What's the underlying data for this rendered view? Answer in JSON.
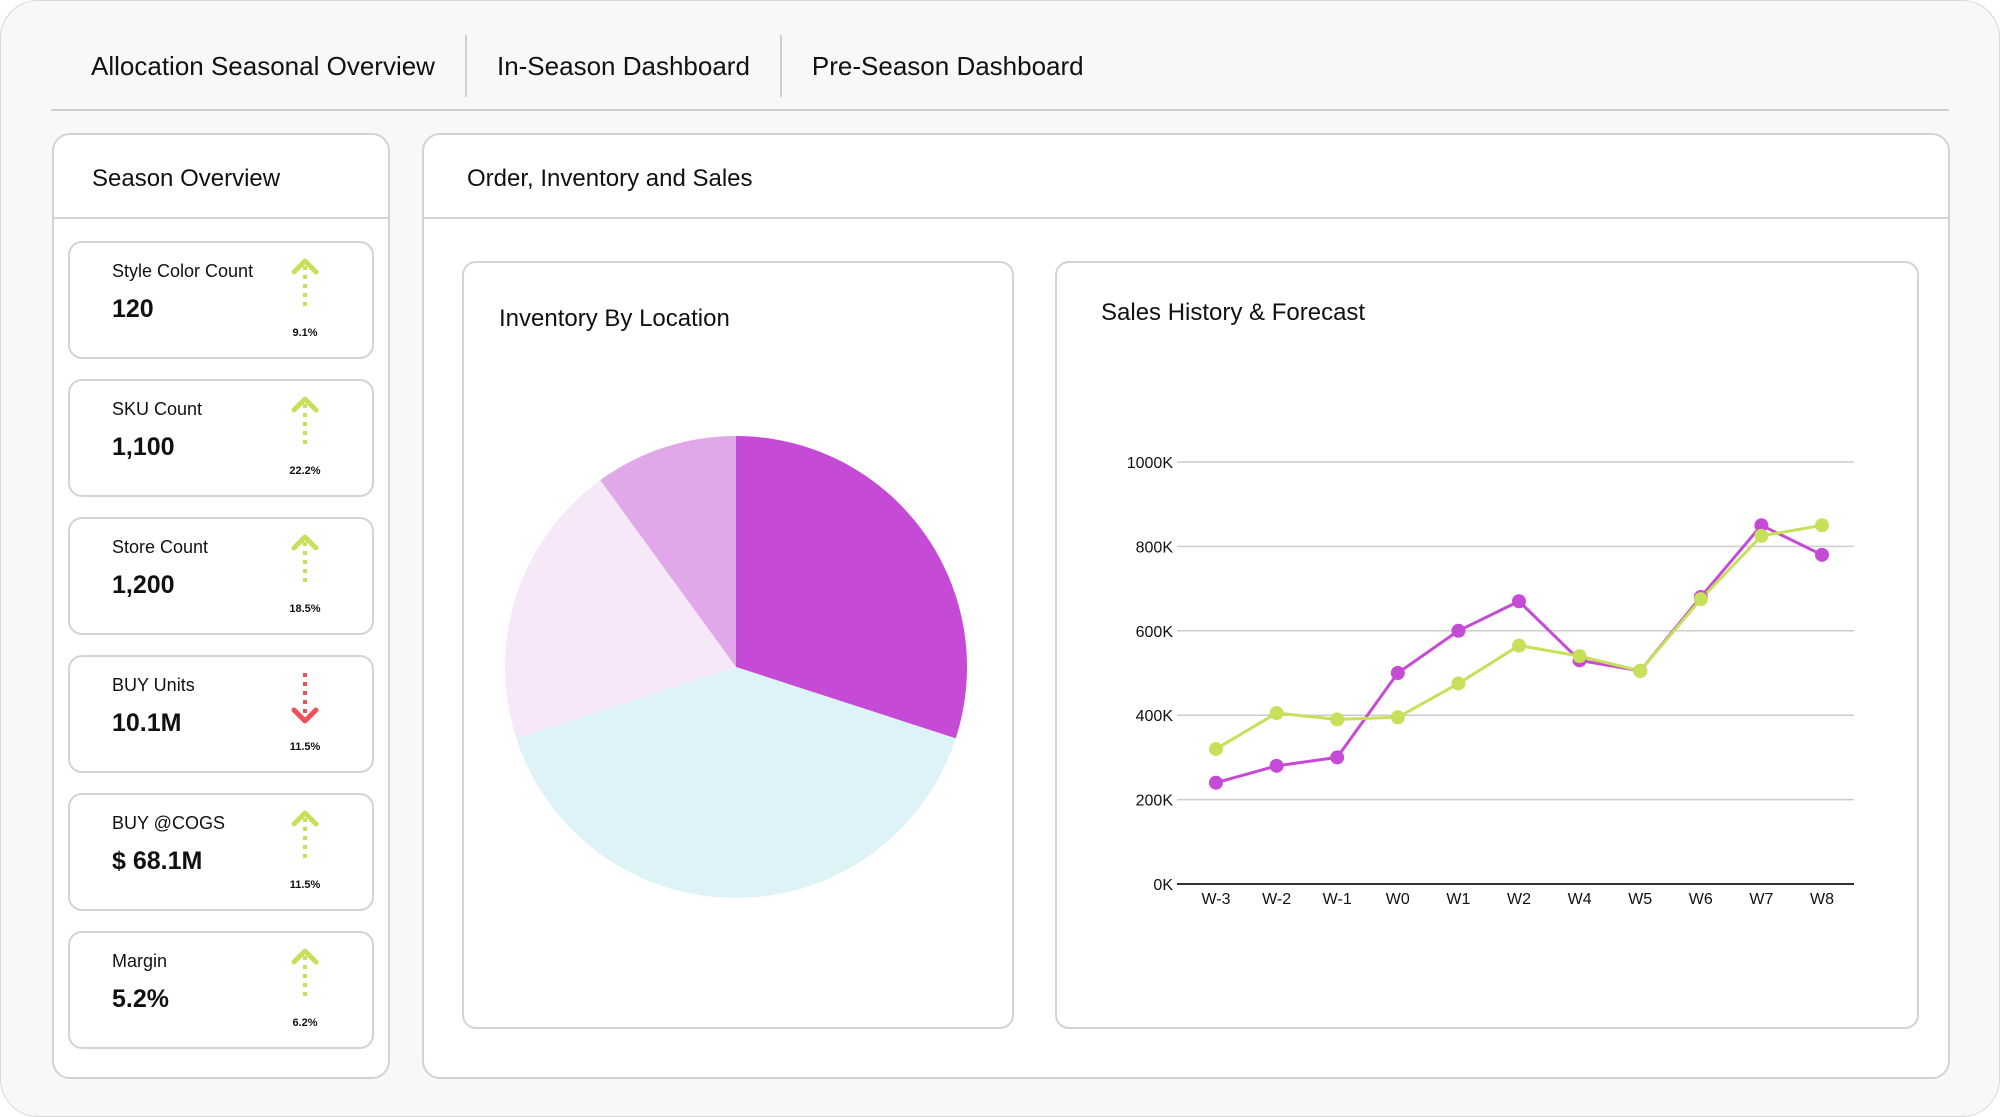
{
  "tabs": [
    "Allocation Seasonal Overview",
    "In-Season Dashboard",
    "Pre-Season Dashboard"
  ],
  "season_overview": {
    "title": "Season Overview",
    "kpis": [
      {
        "label": "Style Color Count",
        "value": "120",
        "change": "9.1%",
        "direction": "up"
      },
      {
        "label": "SKU Count",
        "value": "1,100",
        "change": "22.2%",
        "direction": "up"
      },
      {
        "label": "Store Count",
        "value": "1,200",
        "change": "18.5%",
        "direction": "up"
      },
      {
        "label": "BUY Units",
        "value": "10.1M",
        "change": "11.5%",
        "direction": "down"
      },
      {
        "label": "BUY @COGS",
        "value": "$ 68.1M",
        "change": "11.5%",
        "direction": "up"
      },
      {
        "label": "Margin",
        "value": "5.2%",
        "change": "6.2%",
        "direction": "up"
      }
    ],
    "colors": {
      "up": "#c6e05a",
      "down": "#f0505a"
    }
  },
  "order_inventory_sales": {
    "title": "Order, Inventory and Sales",
    "pie_title": "Inventory By Location",
    "line_title": "Sales History & Forecast"
  },
  "chart_data": [
    {
      "type": "pie",
      "title": "Inventory By Location",
      "values": [
        30,
        40,
        20,
        10
      ],
      "colors": [
        "#c54ad6",
        "#ddf3f8",
        "#f7e8f9",
        "#e1a8e9"
      ]
    },
    {
      "type": "line",
      "title": "Sales History & Forecast",
      "x": [
        "W-3",
        "W-2",
        "W-1",
        "W0",
        "W1",
        "W2",
        "W4",
        "W5",
        "W6",
        "W7",
        "W8"
      ],
      "y_ticks": [
        "0K",
        "200K",
        "400K",
        "600K",
        "800K",
        "1000K"
      ],
      "ylim": [
        0,
        1000000
      ],
      "grid": true,
      "series": [
        {
          "color": "#c54ad6",
          "values": [
            240000,
            280000,
            300000,
            500000,
            600000,
            670000,
            530000,
            505000,
            680000,
            850000,
            780000
          ]
        },
        {
          "color": "#c6e05a",
          "values": [
            320000,
            405000,
            390000,
            395000,
            475000,
            565000,
            540000,
            505000,
            675000,
            825000,
            850000
          ]
        }
      ]
    }
  ]
}
